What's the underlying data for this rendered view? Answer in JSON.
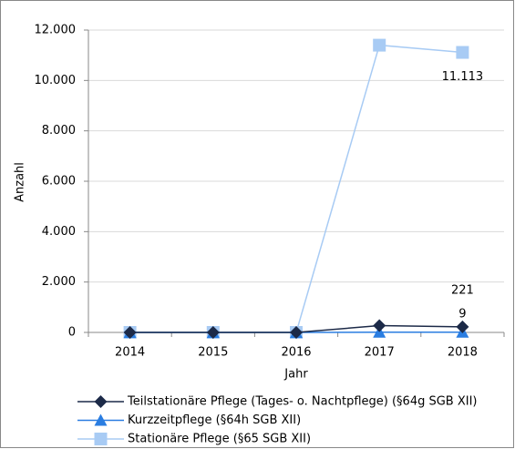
{
  "chart_data": {
    "type": "line",
    "y_label": "Anzahl",
    "x_label": "Jahr",
    "categories": [
      "2014",
      "2015",
      "2016",
      "2017",
      "2018"
    ],
    "ylim": [
      0,
      12000
    ],
    "yticks": [
      0,
      {
        "value": 2000,
        "label": "2.000"
      },
      {
        "value": 4000,
        "label": "4.000"
      },
      {
        "value": 6000,
        "label": "6.000"
      },
      {
        "value": 8000,
        "label": "8.000"
      },
      {
        "value": 10000,
        "label": "10.000"
      },
      {
        "value": 12000,
        "label": "12.000"
      }
    ],
    "grid": true,
    "series": [
      {
        "name": "Teilstationäre Pflege (Tages- o. Nachtpflege) (§64g SGB XII)",
        "color": "#1c2a48",
        "marker": "diamond",
        "values": [
          0,
          0,
          0,
          270,
          221
        ],
        "value_labels": [
          null,
          null,
          null,
          null,
          "221"
        ]
      },
      {
        "name": "Kurzzeitpflege (§64h SGB XII)",
        "color": "#2a7de1",
        "marker": "triangle",
        "values": [
          0,
          0,
          0,
          10,
          9
        ],
        "value_labels": [
          null,
          null,
          null,
          null,
          "9"
        ]
      },
      {
        "name": "Stationäre Pflege (§65 SGB XII)",
        "color": "#a8cbf4",
        "marker": "square",
        "values": [
          0,
          0,
          0,
          11400,
          11113
        ],
        "value_labels": [
          null,
          null,
          null,
          null,
          "11.113"
        ]
      }
    ]
  }
}
